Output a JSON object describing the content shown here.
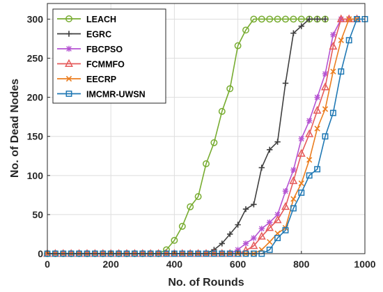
{
  "chart_data": {
    "type": "line",
    "title": "",
    "xlabel": "No. of Rounds",
    "ylabel": "No. of Dead Nodes",
    "xlim": [
      0,
      1000
    ],
    "ylim": [
      0,
      320
    ],
    "xticks": [
      0,
      200,
      400,
      600,
      800,
      1000
    ],
    "yticks": [
      0,
      50,
      100,
      150,
      200,
      250,
      300
    ],
    "grid": true,
    "legend_position": "top-left",
    "series": [
      {
        "name": "LEACH",
        "color": "#77AC30",
        "marker": "circle",
        "x": [
          0,
          25,
          50,
          75,
          100,
          125,
          150,
          175,
          200,
          225,
          250,
          275,
          300,
          325,
          350,
          375,
          400,
          425,
          450,
          475,
          500,
          525,
          550,
          575,
          600,
          625,
          650,
          675,
          700,
          725,
          750,
          775,
          800,
          825,
          850,
          875
        ],
        "y": [
          0,
          0,
          0,
          0,
          0,
          0,
          0,
          0,
          0,
          0,
          0,
          0,
          0,
          0,
          0,
          5,
          17,
          35,
          60,
          73,
          115,
          142,
          182,
          211,
          266,
          286,
          300,
          300,
          300,
          300,
          300,
          300,
          300,
          300,
          300,
          300
        ]
      },
      {
        "name": "EGRC",
        "color": "#3F3F3F",
        "marker": "plus",
        "x": [
          0,
          25,
          50,
          75,
          100,
          125,
          150,
          175,
          200,
          225,
          250,
          275,
          300,
          325,
          350,
          375,
          400,
          425,
          450,
          475,
          500,
          525,
          550,
          575,
          600,
          625,
          650,
          675,
          700,
          725,
          750,
          775,
          800,
          825,
          850,
          875
        ],
        "y": [
          0,
          0,
          0,
          0,
          0,
          0,
          0,
          0,
          0,
          0,
          0,
          0,
          0,
          0,
          0,
          0,
          0,
          0,
          0,
          0,
          0,
          5,
          13,
          25,
          37,
          57,
          63,
          110,
          133,
          143,
          218,
          282,
          291,
          300,
          300,
          300
        ]
      },
      {
        "name": "FBCPSO",
        "color": "#B553D2",
        "marker": "star",
        "x": [
          0,
          25,
          50,
          75,
          100,
          125,
          150,
          175,
          200,
          225,
          250,
          275,
          300,
          325,
          350,
          375,
          400,
          425,
          450,
          475,
          500,
          525,
          550,
          575,
          600,
          625,
          650,
          675,
          700,
          725,
          750,
          775,
          800,
          825,
          850,
          875,
          900,
          925,
          950
        ],
        "y": [
          0,
          0,
          0,
          0,
          0,
          0,
          0,
          0,
          0,
          0,
          0,
          0,
          0,
          0,
          0,
          0,
          0,
          0,
          0,
          0,
          0,
          0,
          0,
          0,
          5,
          13,
          20,
          32,
          40,
          50,
          80,
          107,
          147,
          170,
          200,
          230,
          280,
          300,
          300
        ]
      },
      {
        "name": "FCMMFO",
        "color": "#E55A5A",
        "marker": "triangle",
        "x": [
          0,
          25,
          50,
          75,
          100,
          125,
          150,
          175,
          200,
          225,
          250,
          275,
          300,
          325,
          350,
          375,
          400,
          425,
          450,
          475,
          500,
          525,
          550,
          575,
          600,
          625,
          650,
          675,
          700,
          725,
          750,
          775,
          800,
          825,
          850,
          875,
          900,
          925,
          950,
          975
        ],
        "y": [
          0,
          0,
          0,
          0,
          0,
          0,
          0,
          0,
          0,
          0,
          0,
          0,
          0,
          0,
          0,
          0,
          0,
          0,
          0,
          0,
          0,
          0,
          0,
          0,
          0,
          4,
          10,
          22,
          33,
          43,
          60,
          93,
          128,
          153,
          183,
          213,
          265,
          300,
          300,
          300
        ]
      },
      {
        "name": "EECRP",
        "color": "#EB7D1E",
        "marker": "x",
        "x": [
          0,
          25,
          50,
          75,
          100,
          125,
          150,
          175,
          200,
          225,
          250,
          275,
          300,
          325,
          350,
          375,
          400,
          425,
          450,
          475,
          500,
          525,
          550,
          575,
          600,
          625,
          650,
          675,
          700,
          725,
          750,
          775,
          800,
          825,
          850,
          875,
          900,
          925,
          950,
          975
        ],
        "y": [
          0,
          0,
          0,
          0,
          0,
          0,
          0,
          0,
          0,
          0,
          0,
          0,
          0,
          0,
          0,
          0,
          0,
          0,
          0,
          0,
          0,
          0,
          0,
          0,
          0,
          0,
          0,
          5,
          15,
          26,
          33,
          70,
          90,
          120,
          160,
          185,
          233,
          273,
          300,
          300
        ]
      },
      {
        "name": "IMCMR-UWSN",
        "color": "#1F78B4",
        "marker": "square",
        "x": [
          0,
          25,
          50,
          75,
          100,
          125,
          150,
          175,
          200,
          225,
          250,
          275,
          300,
          325,
          350,
          375,
          400,
          425,
          450,
          475,
          500,
          525,
          550,
          575,
          600,
          625,
          650,
          675,
          700,
          725,
          750,
          775,
          800,
          825,
          850,
          875,
          900,
          925,
          950,
          975,
          1000
        ],
        "y": [
          0,
          0,
          0,
          0,
          0,
          0,
          0,
          0,
          0,
          0,
          0,
          0,
          0,
          0,
          0,
          0,
          0,
          0,
          0,
          0,
          0,
          0,
          0,
          0,
          0,
          0,
          0,
          0,
          5,
          20,
          30,
          58,
          78,
          100,
          108,
          150,
          180,
          233,
          273,
          300,
          300
        ]
      }
    ]
  }
}
